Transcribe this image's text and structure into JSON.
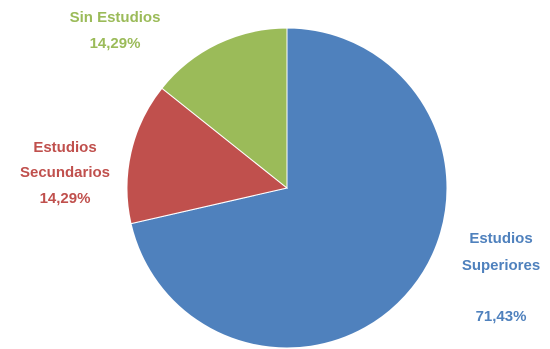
{
  "chart_data": {
    "type": "pie",
    "title": "",
    "slices": [
      {
        "name": "Estudios Superiores",
        "name_lines": [
          "Estudios",
          "Superiores"
        ],
        "value": 71.43,
        "label": "71,43%",
        "color": "#4f81bd"
      },
      {
        "name": "Estudios Secundarios",
        "name_lines": [
          "Estudios",
          "Secundarios"
        ],
        "value": 14.29,
        "label": "14,29%",
        "color": "#c0504d"
      },
      {
        "name": "Sin Estudios",
        "name_lines": [
          "Sin Estudios"
        ],
        "value": 14.29,
        "label": "14,29%",
        "color": "#9bbb59"
      }
    ],
    "start_angle": "12 o'clock",
    "direction": "clockwise",
    "legend": "none (data labels)"
  }
}
